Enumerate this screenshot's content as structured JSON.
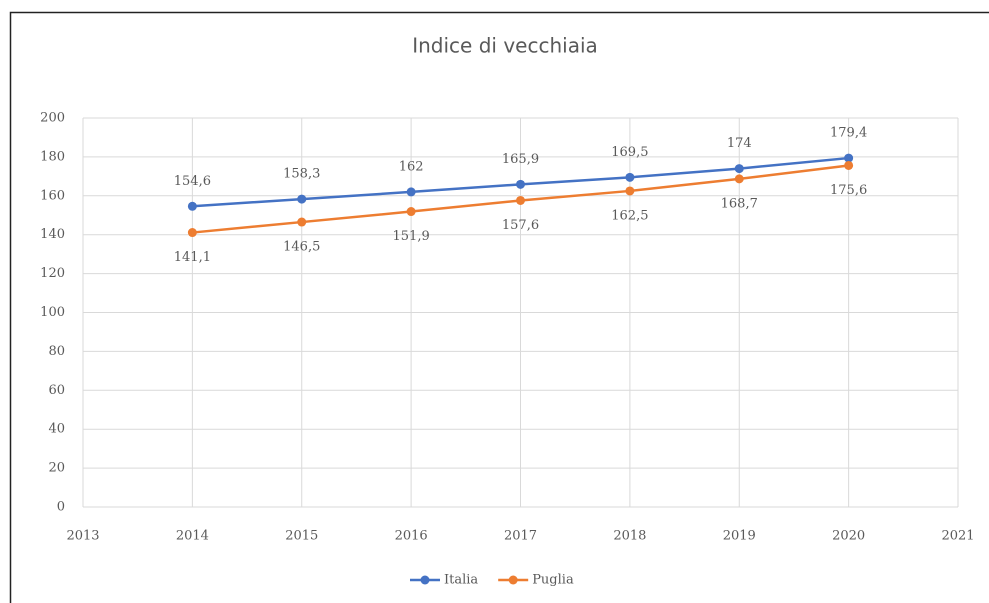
{
  "chart_data": {
    "type": "line",
    "title": "Indice di vecchiaia",
    "x": [
      2014,
      2015,
      2016,
      2017,
      2018,
      2019,
      2020
    ],
    "series": [
      {
        "name": "Italia",
        "color": "#4472c4",
        "values": [
          154.6,
          158.3,
          162,
          165.9,
          169.5,
          174,
          179.4
        ],
        "value_labels": [
          "154,6",
          "158,3",
          "162",
          "165,9",
          "169,5",
          "174",
          "179,4"
        ]
      },
      {
        "name": "Puglia",
        "color": "#ed7d31",
        "values": [
          141.1,
          146.5,
          151.9,
          157.6,
          162.5,
          168.7,
          175.6
        ],
        "value_labels": [
          "141,1",
          "146,5",
          "151,9",
          "157,6",
          "162,5",
          "168,7",
          "175,6"
        ]
      }
    ],
    "xlim": [
      2013,
      2021
    ],
    "xticks": [
      2013,
      2014,
      2015,
      2016,
      2017,
      2018,
      2019,
      2020,
      2021
    ],
    "ylim": [
      0,
      200
    ],
    "yticks": [
      0,
      20,
      40,
      60,
      80,
      100,
      120,
      140,
      160,
      180,
      200
    ],
    "grid": true,
    "legend": "bottom"
  }
}
